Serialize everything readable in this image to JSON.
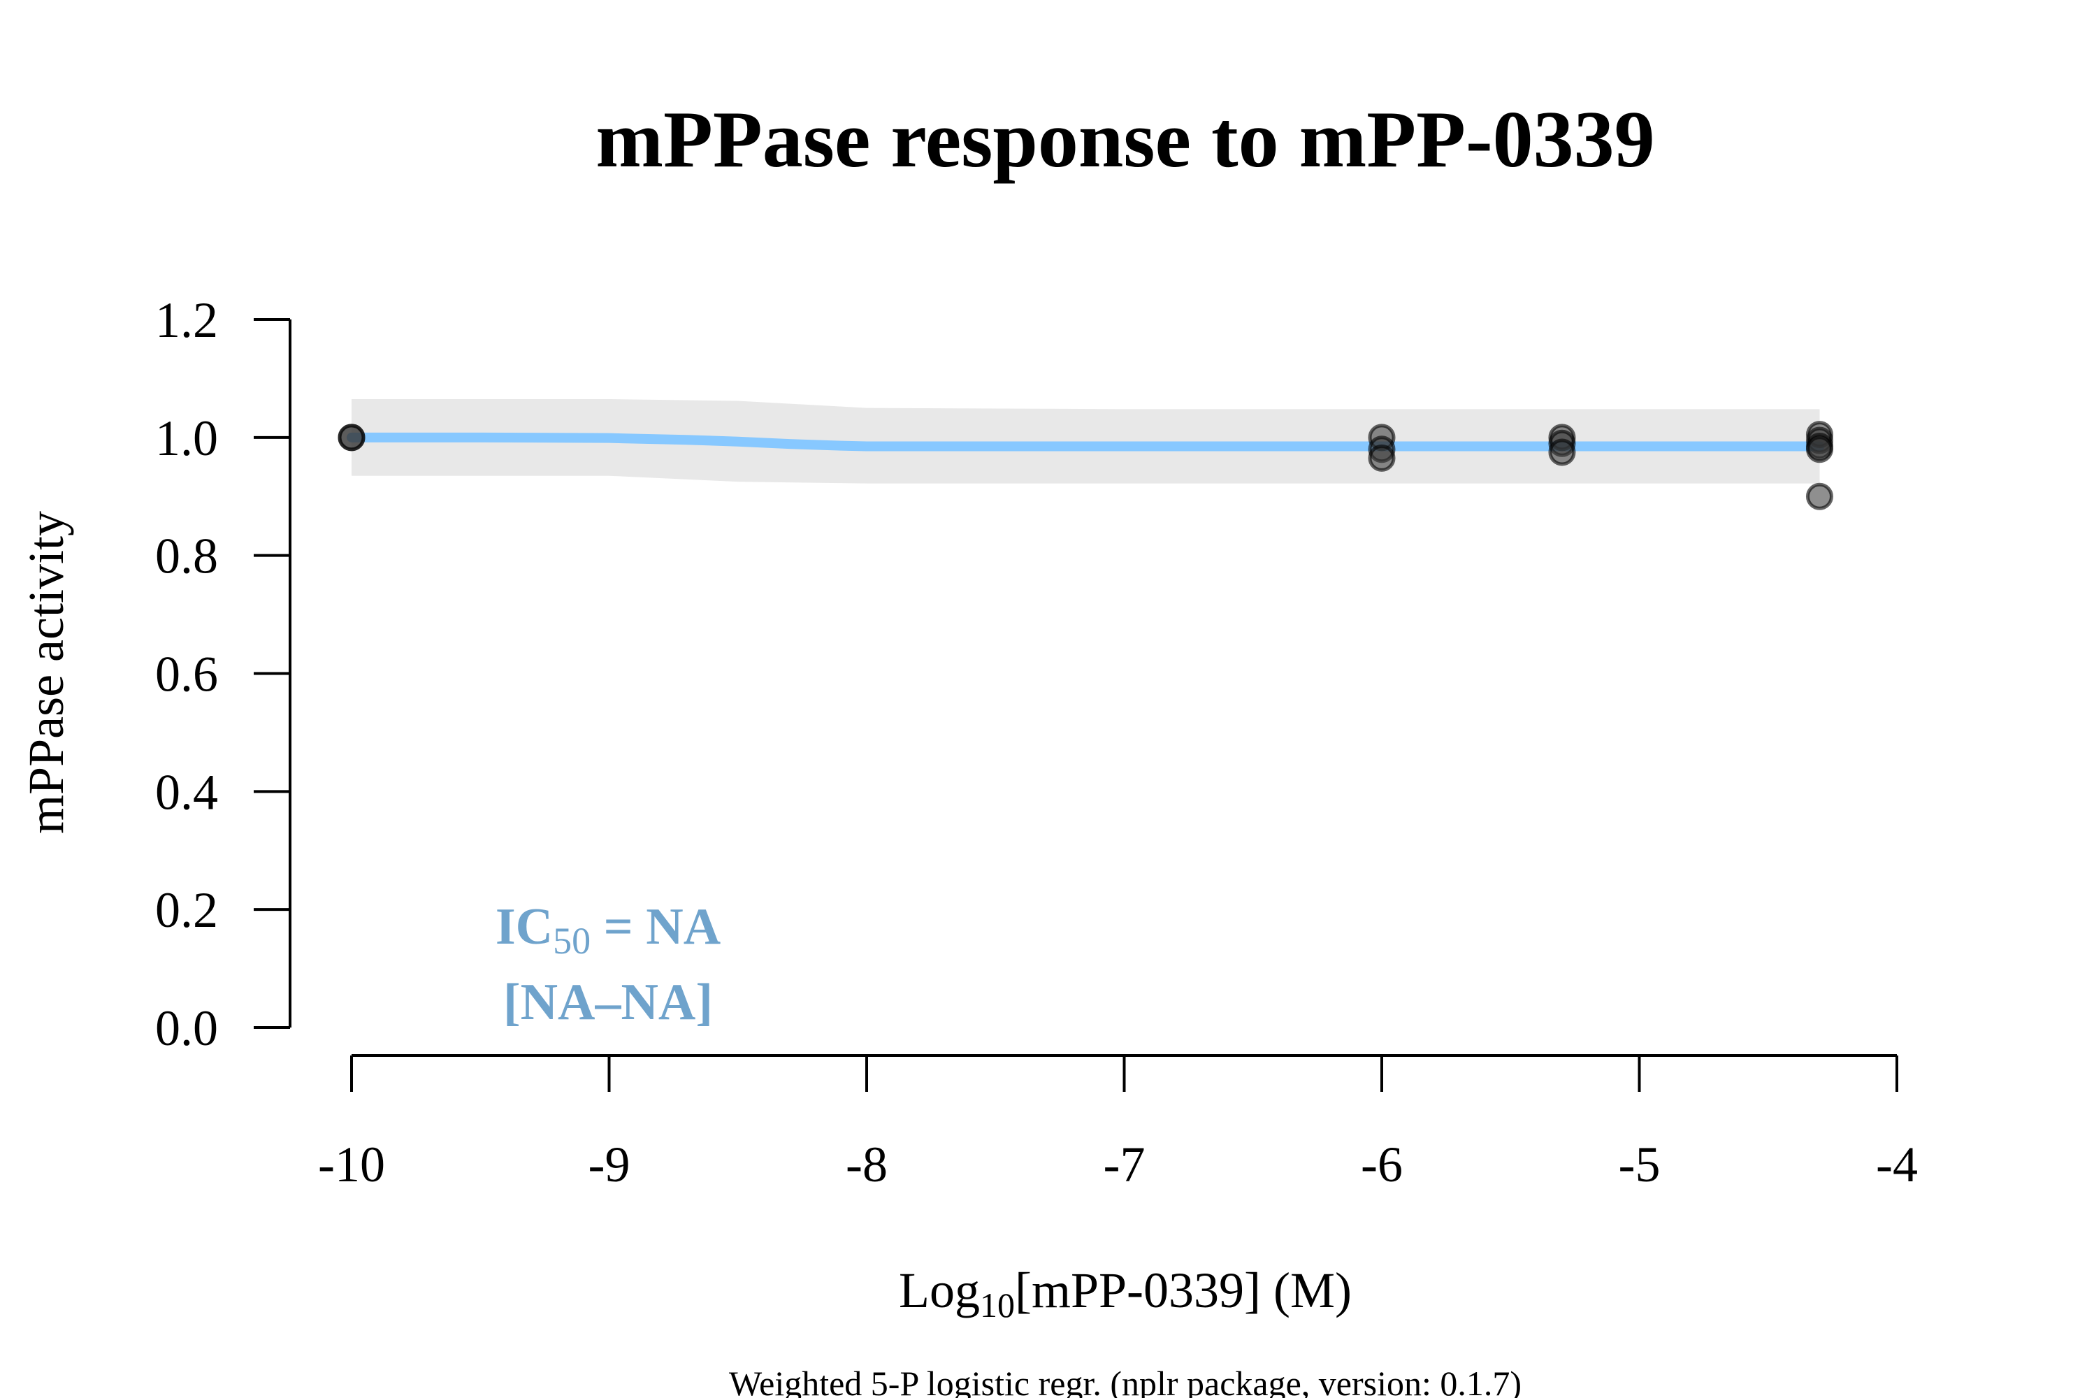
{
  "chart_data": {
    "type": "scatter",
    "title": "mPPase response to mPP-0339",
    "xlabel": {
      "prefix": "Log",
      "sub": "10",
      "suffix": "[mPP-0339] (M)"
    },
    "ylabel": "mPPase activity",
    "caption": "Weighted 5-P logistic regr. (nplr package, version: 0.1.7)",
    "xlim": [
      -10,
      -4
    ],
    "ylim": [
      0,
      1.2
    ],
    "x_ticks": [
      -10,
      -9,
      -8,
      -7,
      -6,
      -5,
      -4
    ],
    "x_tick_labels": [
      "-10",
      "-9",
      "-8",
      "-7",
      "-6",
      "-5",
      "-4"
    ],
    "y_ticks": [
      0,
      0.2,
      0.4,
      0.6,
      0.8,
      1.0,
      1.2
    ],
    "y_tick_labels": [
      "0.0",
      "0.2",
      "0.4",
      "0.6",
      "0.8",
      "1.0",
      "1.2"
    ],
    "grid": false,
    "series": [
      {
        "kind": "points",
        "color": "#333333",
        "x": [
          -10,
          -10,
          -6,
          -6,
          -6,
          -5.3,
          -5.3,
          -5.3,
          -4.3,
          -4.3,
          -4.3,
          -4.3,
          -4.3
        ],
        "y": [
          1.0,
          1.0,
          1.0,
          0.98,
          0.965,
          1.0,
          0.99,
          0.975,
          1.005,
          0.995,
          0.985,
          0.98,
          0.9
        ]
      },
      {
        "kind": "fit",
        "color": "#87c8ff",
        "x": [
          -10,
          -9.5,
          -9,
          -8.7,
          -8.5,
          -8.3,
          -8.1,
          -8,
          -7.5,
          -7,
          -6,
          -5,
          -4.3
        ],
        "y": [
          1.0,
          1.0,
          0.999,
          0.996,
          0.993,
          0.989,
          0.986,
          0.985,
          0.985,
          0.985,
          0.985,
          0.985,
          0.985
        ]
      },
      {
        "kind": "confidence_band",
        "color": "#e8e8e8",
        "x": [
          -10,
          -9,
          -8.5,
          -8,
          -7,
          -6,
          -5,
          -4.3
        ],
        "upper": [
          1.065,
          1.065,
          1.062,
          1.05,
          1.048,
          1.048,
          1.048,
          1.048
        ],
        "lower": [
          0.935,
          0.935,
          0.925,
          0.922,
          0.922,
          0.922,
          0.922,
          0.922
        ]
      }
    ],
    "annotation": {
      "line1": {
        "prefix": "IC",
        "sub": "50",
        "suffix": " = NA"
      },
      "line2": "[NA–NA]",
      "color": "#6fa3cc"
    }
  }
}
